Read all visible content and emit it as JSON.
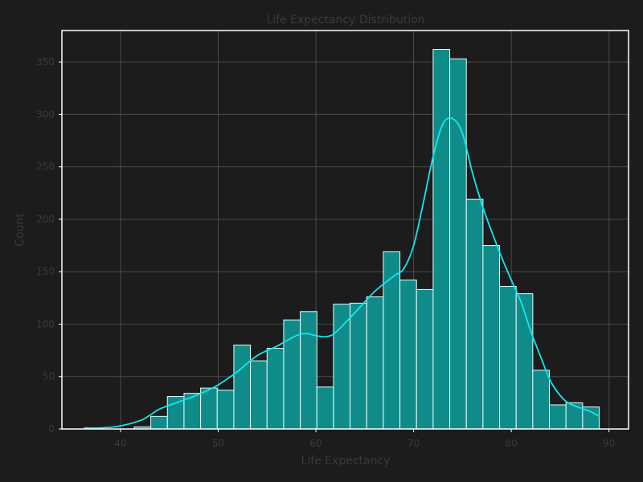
{
  "chart_data": {
    "type": "bar",
    "title": "Life Expectancy Distribution",
    "xlabel": "Life Expectancy",
    "ylabel": "Count",
    "xlim": [
      34,
      92
    ],
    "ylim": [
      0,
      380
    ],
    "xticks": [
      40,
      50,
      60,
      70,
      80,
      90
    ],
    "yticks": [
      0,
      50,
      100,
      150,
      200,
      250,
      300,
      350
    ],
    "grid": true,
    "bin_edges": [
      36.3,
      38.0,
      39.7,
      41.4,
      43.1,
      44.8,
      46.5,
      48.2,
      49.9,
      51.6,
      53.3,
      55.0,
      56.7,
      58.4,
      60.1,
      61.8,
      63.5,
      65.2,
      66.9,
      68.6,
      70.3,
      72.0,
      73.7,
      75.4,
      77.1,
      78.8,
      80.5,
      82.2,
      83.9,
      85.6,
      87.3,
      89.0
    ],
    "values": [
      1,
      0,
      0,
      2,
      12,
      31,
      34,
      39,
      37,
      80,
      65,
      77,
      104,
      112,
      40,
      119,
      120,
      126,
      169,
      142,
      133,
      362,
      353,
      219,
      175,
      136,
      129,
      56,
      23,
      25,
      21
    ],
    "kde": {
      "x": [
        36.3,
        38,
        40,
        42,
        43,
        44,
        46,
        48,
        50,
        52,
        54,
        56,
        58,
        59,
        60,
        61,
        62,
        64,
        66,
        68,
        69,
        70,
        71,
        72,
        73,
        74,
        75,
        76,
        77,
        78,
        79,
        80,
        81,
        82,
        83,
        84,
        85,
        86,
        88,
        89
      ],
      "y": [
        1,
        1,
        3,
        8,
        13,
        19,
        26,
        33,
        42,
        55,
        70,
        79,
        89,
        91,
        89,
        88,
        92,
        111,
        131,
        146,
        153,
        175,
        216,
        260,
        291,
        296,
        282,
        245,
        214,
        188,
        164,
        142,
        121,
        93,
        69,
        46,
        32,
        24,
        17,
        12
      ]
    }
  }
}
